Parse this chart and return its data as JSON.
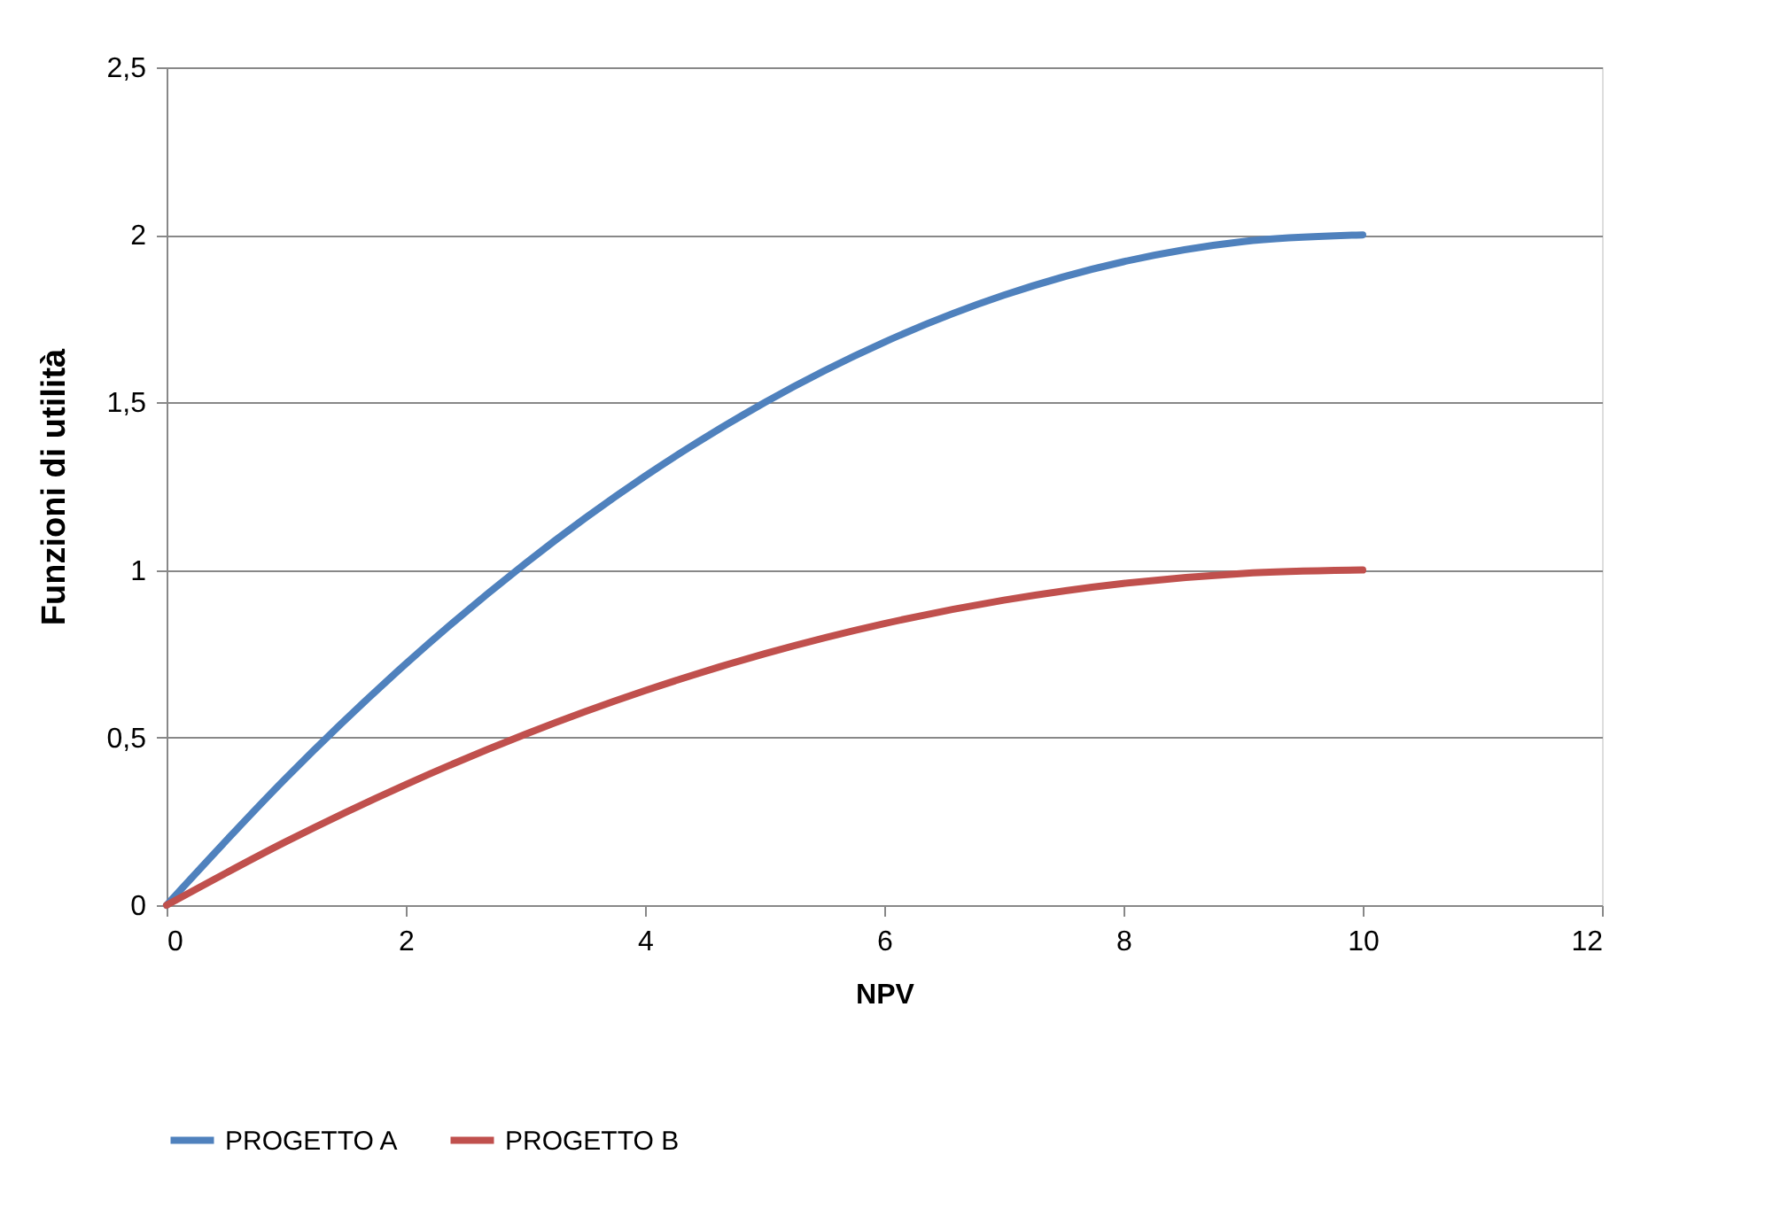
{
  "chart_data": {
    "type": "line",
    "xlabel": "NPV",
    "ylabel": "Funzioni di utilità",
    "xlim": [
      0,
      12
    ],
    "xticks": [
      0,
      2,
      4,
      6,
      8,
      10,
      12
    ],
    "ylim": [
      0,
      2.5
    ],
    "yticks": [
      0,
      {
        "value": 0.5,
        "label": "0,5"
      },
      1,
      {
        "value": 1.5,
        "label": "1,5"
      },
      2,
      {
        "value": 2.5,
        "label": "2,5"
      }
    ],
    "grid": "y",
    "legend": "bottom",
    "marker": "none",
    "line_style": "solid",
    "series": [
      {
        "name": "PROGETTO A",
        "color": "#4f81bd",
        "x": [
          0,
          1,
          2,
          3,
          4,
          5,
          6,
          7,
          8,
          9,
          10
        ],
        "values": [
          0,
          0.38,
          0.72,
          1.02,
          1.28,
          1.5,
          1.68,
          1.82,
          1.92,
          1.98,
          2
        ]
      },
      {
        "name": "PROGETTO B",
        "color": "#c0504d",
        "x": [
          0,
          1,
          2,
          3,
          4,
          5,
          6,
          7,
          8,
          9,
          10
        ],
        "values": [
          0,
          0.19,
          0.36,
          0.51,
          0.64,
          0.75,
          0.84,
          0.91,
          0.96,
          0.99,
          1
        ]
      }
    ]
  }
}
